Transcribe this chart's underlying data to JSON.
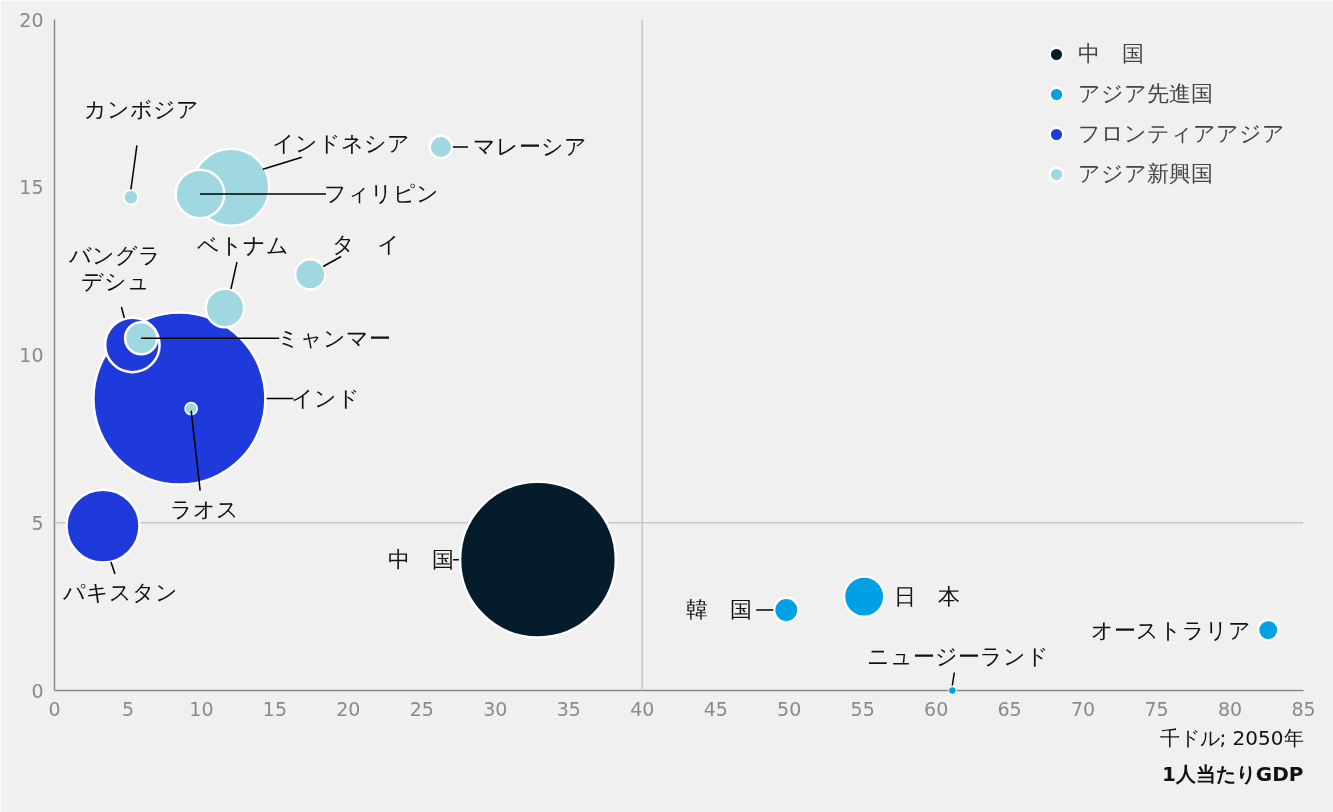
{
  "chart_data": {
    "type": "bubble",
    "xlabel": "1人当たりGDP",
    "annotations": [
      "千ドル; 2050年",
      {
        "text": "中　国",
        "x": 32.9,
        "y": 3.9
      },
      {
        "text": "日　本",
        "x": 55.1,
        "y": 2.8
      },
      {
        "text": "韓　国",
        "x": 49.8,
        "y": 2.4
      },
      {
        "text": "オーストラリア",
        "x": 82.6,
        "y": 1.8
      },
      {
        "text": "ニュージーランド",
        "x": 61.1,
        "y": 0.0
      },
      {
        "text": "パキスタン",
        "x": 3.3,
        "y": 4.9
      },
      {
        "text": "インド",
        "x": 8.5,
        "y": 8.7
      },
      {
        "text": "バングラデシュ",
        "x": 5.3,
        "y": 10.3
      },
      {
        "text": "ミャンマー",
        "x": 5.9,
        "y": 10.5
      },
      {
        "text": "ラオス",
        "x": 9.3,
        "y": 8.4
      },
      {
        "text": "カンボジア",
        "x": 5.2,
        "y": 14.7
      },
      {
        "text": "インドネシア",
        "x": 12.0,
        "y": 15.0
      },
      {
        "text": "フィリピン",
        "x": 9.9,
        "y": 14.8
      },
      {
        "text": "ベトナム",
        "x": 11.6,
        "y": 11.4
      },
      {
        "text": "タ　イ",
        "x": 17.4,
        "y": 12.4
      },
      {
        "text": "マレーシア",
        "x": 26.3,
        "y": 16.2
      }
    ],
    "series": [
      {
        "name": "中　国",
        "color": "#041c2c",
        "x": [
          32.9
        ],
        "values": [
          3.9
        ],
        "sizes": [
          0.82
        ]
      },
      {
        "name": "アジア先進国",
        "color": "#00a0e4",
        "x": [
          55.1,
          49.8,
          82.6,
          61.1
        ],
        "values": [
          2.8,
          2.4,
          1.8,
          0.0
        ],
        "sizes": [
          0.055,
          0.02,
          0.014,
          0.002
        ]
      },
      {
        "name": "フロンティアアジア",
        "color": "#1f3adb",
        "x": [
          3.3,
          8.5,
          5.3
        ],
        "values": [
          4.9,
          8.7,
          10.3
        ],
        "sizes": [
          0.18,
          1,
          0.1
        ]
      },
      {
        "name": "アジア新興国",
        "color": "#9fd8e0",
        "x": [
          5.9,
          9.3,
          5.2,
          12.0,
          9.9,
          11.6,
          17.4,
          26.3
        ],
        "values": [
          10.5,
          8.4,
          14.7,
          15.0,
          14.8,
          11.4,
          12.4,
          16.2
        ],
        "sizes": [
          0.035,
          0.005,
          0.007,
          0.2,
          0.08,
          0.05,
          0.031,
          0.017
        ]
      }
    ],
    "xlim": [
      0,
      85
    ],
    "ylim": [
      0,
      20
    ],
    "xticks": [
      0,
      5,
      10,
      15,
      20,
      25,
      30,
      35,
      40,
      45,
      50,
      55,
      60,
      65,
      70,
      75,
      80,
      85
    ],
    "yticks": [
      0,
      5,
      10,
      15,
      20
    ],
    "ref_lines": [
      {
        "axis": "x",
        "value": 40,
        "color": "#c8c8c8"
      },
      {
        "axis": "y",
        "value": 5,
        "color": "#c8c8c8"
      }
    ],
    "grid": false,
    "legend": "top right",
    "marker": "circle"
  }
}
